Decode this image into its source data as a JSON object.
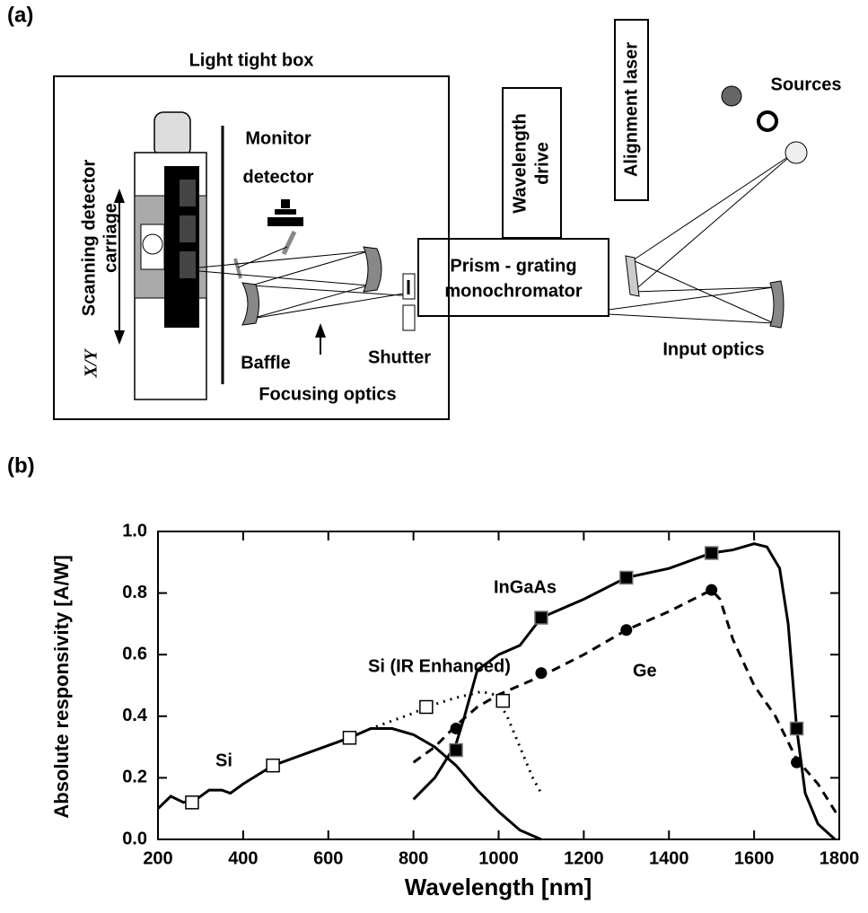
{
  "panel_a": {
    "label": "(a)",
    "box_title": "Light tight box",
    "carriage": [
      "Scanning detector",
      "carriage"
    ],
    "axes": "X/Y",
    "monitor": [
      "Monitor",
      "detector"
    ],
    "baffle": "Baffle",
    "focusing": "Focusing optics",
    "shutter": "Shutter",
    "monochromator": [
      "Prism - grating",
      "monochromator"
    ],
    "wavelength_drive": [
      "Wavelength",
      "drive"
    ],
    "alignment_laser": "Alignment laser",
    "sources": "Sources",
    "input_optics": "Input optics"
  },
  "panel_b_label": "(b)",
  "chart_data": {
    "type": "line",
    "x_label": "Wavelength [nm]",
    "y_label": "Absolute responsivity [A/W]",
    "xlim": [
      200,
      1800
    ],
    "ylim": [
      0,
      1
    ],
    "xticks": [
      200,
      400,
      600,
      800,
      1000,
      1200,
      1400,
      1600,
      1800
    ],
    "yticks": [
      {
        "value": 0,
        "label": "0.0"
      },
      0.2,
      0.4,
      0.6,
      0.8,
      {
        "value": 1,
        "label": "1.0"
      }
    ],
    "series": [
      {
        "name": "Si",
        "line_style": "solid",
        "color": "#000000",
        "x": [
          200,
          230,
          260,
          290,
          320,
          350,
          370,
          400,
          470,
          550,
          650,
          700,
          750,
          800,
          850,
          900,
          950,
          1000,
          1050,
          1100
        ],
        "values": [
          0.1,
          0.14,
          0.12,
          0.13,
          0.16,
          0.16,
          0.15,
          0.18,
          0.24,
          0.28,
          0.33,
          0.36,
          0.36,
          0.34,
          0.3,
          0.24,
          0.16,
          0.09,
          0.03,
          0.0
        ]
      },
      {
        "name": "Si (IR Enhanced)",
        "line_style": "dotted",
        "color": "#000000",
        "x": [
          650,
          700,
          800,
          830,
          900,
          960,
          990,
          1020,
          1050,
          1080,
          1100
        ],
        "values": [
          0.33,
          0.36,
          0.41,
          0.43,
          0.46,
          0.48,
          0.47,
          0.4,
          0.3,
          0.2,
          0.15
        ]
      },
      {
        "name": "InGaAs",
        "line_style": "solid",
        "color": "#000000",
        "x": [
          800,
          850,
          900,
          920,
          950,
          1000,
          1050,
          1100,
          1200,
          1300,
          1400,
          1500,
          1550,
          1600,
          1630,
          1660,
          1680,
          1700,
          1720,
          1750,
          1790
        ],
        "values": [
          0.13,
          0.2,
          0.31,
          0.4,
          0.55,
          0.6,
          0.63,
          0.72,
          0.78,
          0.85,
          0.88,
          0.93,
          0.94,
          0.96,
          0.95,
          0.88,
          0.7,
          0.36,
          0.15,
          0.05,
          0.0
        ]
      },
      {
        "name": "Ge",
        "line_style": "dashed",
        "color": "#000000",
        "x": [
          800,
          850,
          900,
          950,
          1000,
          1100,
          1200,
          1300,
          1400,
          1500,
          1520,
          1550,
          1600,
          1650,
          1700,
          1750,
          1800
        ],
        "values": [
          0.25,
          0.3,
          0.37,
          0.43,
          0.47,
          0.53,
          0.6,
          0.68,
          0.74,
          0.81,
          0.78,
          0.65,
          0.5,
          0.4,
          0.26,
          0.18,
          0.07
        ]
      },
      {
        "marker": "square-open",
        "color": "#000000",
        "x": [
          280,
          470,
          650,
          830,
          1010
        ],
        "values": [
          0.12,
          0.24,
          0.33,
          0.43,
          0.45
        ]
      },
      {
        "marker": "square",
        "color": "#000000",
        "x": [
          900,
          1100,
          1300,
          1500,
          1700
        ],
        "values": [
          0.29,
          0.72,
          0.85,
          0.93,
          0.36
        ]
      },
      {
        "marker": "circle",
        "color": "#000000",
        "x": [
          900,
          1100,
          1300,
          1500,
          1700
        ],
        "values": [
          0.36,
          0.54,
          0.68,
          0.81,
          0.25
        ]
      }
    ]
  }
}
